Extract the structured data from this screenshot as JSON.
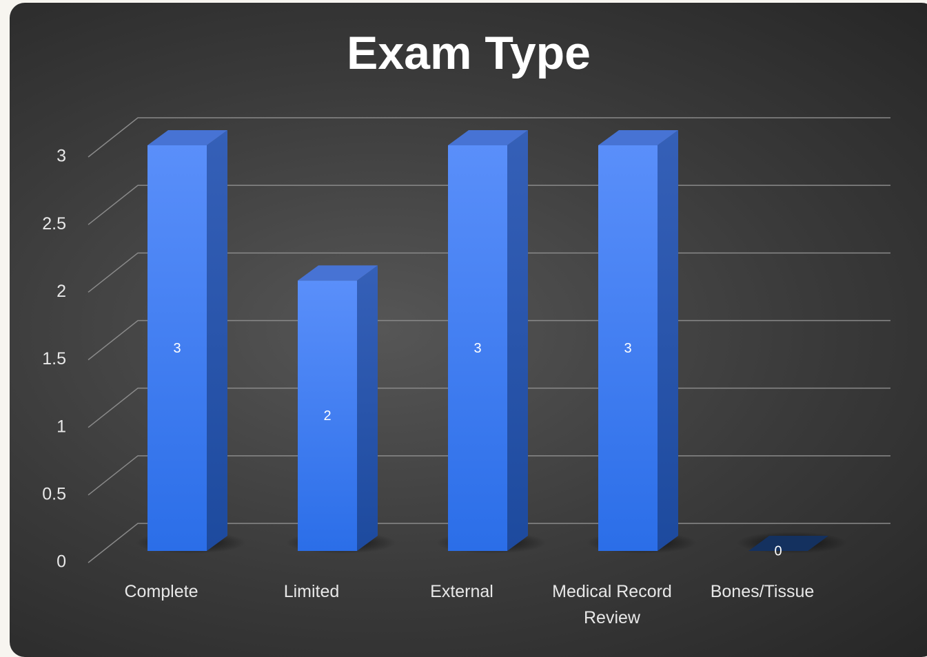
{
  "chart_data": {
    "type": "bar3d",
    "title": "Exam Type",
    "categories": [
      "Complete",
      "Limited",
      "External",
      "Medical Record Review",
      "Bones/Tissue"
    ],
    "values": [
      3,
      2,
      3,
      3,
      0
    ],
    "color": "#3b7cf5",
    "ylim": [
      0,
      3
    ],
    "yticks": [
      0,
      0.5,
      1,
      1.5,
      2,
      2.5,
      3
    ],
    "grid": true
  }
}
